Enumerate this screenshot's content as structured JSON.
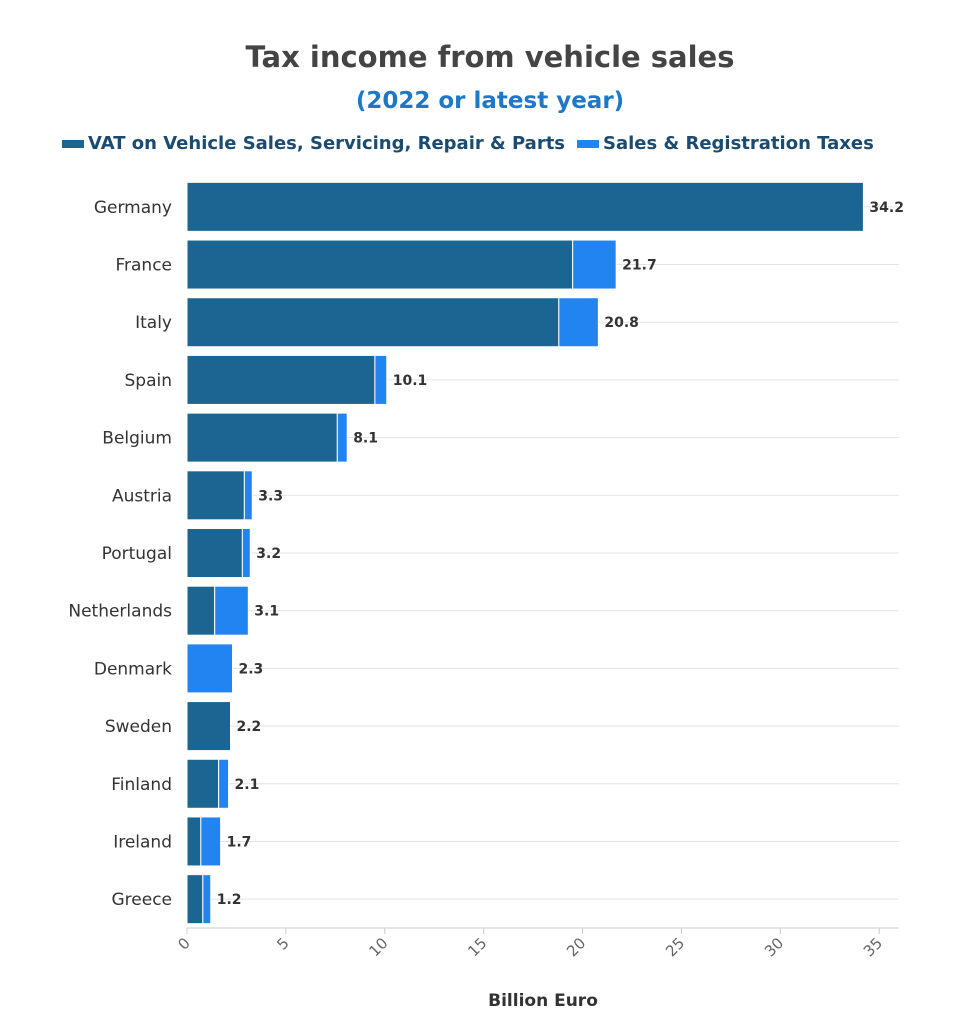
{
  "chart_data": {
    "type": "bar",
    "orientation": "horizontal",
    "stacked": true,
    "title": "Tax income from vehicle sales",
    "subtitle": "(2022 or latest year)",
    "xlabel": "Billion Euro",
    "ylabel": "",
    "xlim": [
      0,
      36
    ],
    "x_ticks": [
      "0",
      "5",
      "10",
      "15",
      "20",
      "25",
      "30",
      "35"
    ],
    "grid": true,
    "legend_position": "top",
    "categories": [
      "Germany",
      "France",
      "Italy",
      "Spain",
      "Belgium",
      "Austria",
      "Portugal",
      "Netherlands",
      "Denmark",
      "Sweden",
      "Finland",
      "Ireland",
      "Greece"
    ],
    "series": [
      {
        "name": "VAT on Vehicle Sales, Servicing, Repair & Parts",
        "color": "#1a6591",
        "values": [
          34.2,
          19.5,
          18.8,
          9.5,
          7.6,
          2.9,
          2.8,
          1.4,
          0,
          2.2,
          1.6,
          0.7,
          0.8
        ]
      },
      {
        "name": "Sales & Registration Taxes",
        "color": "#2184f0",
        "values": [
          0,
          2.2,
          2.0,
          0.6,
          0.5,
          0.4,
          0.4,
          1.7,
          2.3,
          0,
          0.5,
          1.0,
          0.4
        ]
      }
    ],
    "totals": [
      "34.2",
      "21.7",
      "20.8",
      "10.1",
      "8.1",
      "3.3",
      "3.2",
      "3.1",
      "2.3",
      "2.2",
      "2.1",
      "1.7",
      "1.2"
    ]
  }
}
